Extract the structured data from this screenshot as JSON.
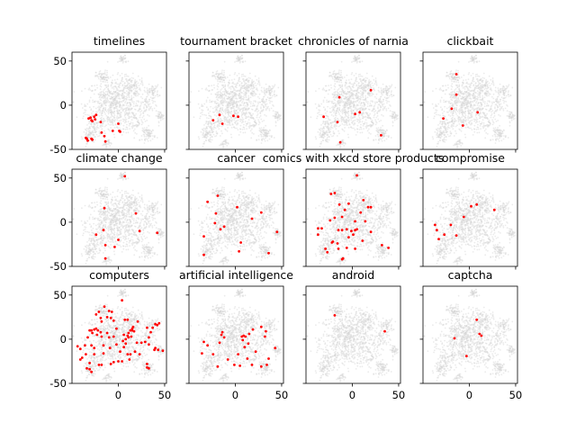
{
  "chart_data": {
    "type": "scatter",
    "layout": "3x4 grid of small multiples with shared axes",
    "xlim": [
      -50,
      52
    ],
    "ylim": [
      -50,
      60
    ],
    "xticks": [
      0,
      50
    ],
    "yticks": [
      -50,
      0,
      50
    ],
    "grid": false,
    "background_points_color": "#d3d3d3",
    "highlight_color": "#ff0000",
    "panels": [
      {
        "title": "timelines",
        "points": [
          [
            -29,
            -17
          ],
          [
            -32,
            -15
          ],
          [
            -26,
            -13
          ],
          [
            -24,
            -11
          ],
          [
            -28,
            -18
          ],
          [
            -30,
            -14
          ],
          [
            -25,
            -16
          ],
          [
            -19,
            -19
          ],
          [
            0,
            -21
          ],
          [
            -18,
            -31
          ],
          [
            -15,
            -35
          ],
          [
            -6,
            -29
          ],
          [
            2,
            -30
          ],
          [
            1,
            -29
          ],
          [
            -34,
            -38
          ],
          [
            -33,
            -40
          ],
          [
            -28,
            -39
          ],
          [
            -35,
            -37
          ],
          [
            -14,
            -41
          ],
          [
            -29,
            -38
          ]
        ]
      },
      {
        "title": "tournament bracket",
        "points": [
          [
            -24,
            -17
          ],
          [
            -17,
            -11
          ],
          [
            -14,
            -21
          ],
          [
            -2,
            -12
          ],
          [
            3,
            -13
          ]
        ]
      },
      {
        "title": "chronicles of narnia",
        "points": [
          [
            -31,
            -13
          ],
          [
            -14,
            9
          ],
          [
            -16,
            -19
          ],
          [
            3,
            -10
          ],
          [
            8,
            -8
          ],
          [
            20,
            17
          ],
          [
            31,
            -34
          ],
          [
            -13,
            -42
          ]
        ]
      },
      {
        "title": "clickbait",
        "points": [
          [
            -14,
            35
          ],
          [
            -14,
            12
          ],
          [
            -19,
            -4
          ],
          [
            -28,
            -15
          ],
          [
            9,
            -8
          ],
          [
            -7,
            -23
          ]
        ]
      },
      {
        "title": "climate change",
        "points": [
          [
            7,
            52
          ],
          [
            -15,
            16
          ],
          [
            19,
            10
          ],
          [
            -16,
            -9
          ],
          [
            -24,
            -14
          ],
          [
            23,
            -10
          ],
          [
            42,
            -12
          ],
          [
            0,
            -20
          ],
          [
            -14,
            -26
          ],
          [
            -4,
            -28
          ],
          [
            -14,
            -41
          ]
        ]
      },
      {
        "title": "cancer",
        "points": [
          [
            -19,
            30
          ],
          [
            -30,
            23
          ],
          [
            2,
            17
          ],
          [
            -21,
            10
          ],
          [
            28,
            11
          ],
          [
            18,
            4
          ],
          [
            -22,
            -1
          ],
          [
            -12,
            -5
          ],
          [
            -16,
            -8
          ],
          [
            -34,
            -16
          ],
          [
            6,
            -23
          ],
          [
            4,
            -33
          ],
          [
            45,
            -11
          ],
          [
            36,
            -35
          ],
          [
            -34,
            -37
          ]
        ]
      },
      {
        "title": "comics with xkcd store products",
        "points": [
          [
            5,
            53
          ],
          [
            -23,
            32
          ],
          [
            -19,
            33
          ],
          [
            -4,
            21
          ],
          [
            -14,
            20
          ],
          [
            -8,
            14
          ],
          [
            12,
            25
          ],
          [
            17,
            17
          ],
          [
            20,
            17
          ],
          [
            9,
            11
          ],
          [
            -19,
            5
          ],
          [
            -11,
            6
          ],
          [
            -24,
            2
          ],
          [
            3,
            1
          ],
          [
            14,
            1
          ],
          [
            -37,
            -7
          ],
          [
            -33,
            -7
          ],
          [
            -37,
            -14
          ],
          [
            -15,
            -9
          ],
          [
            -11,
            -9
          ],
          [
            -6,
            -8
          ],
          [
            5,
            -8
          ],
          [
            3,
            -9
          ],
          [
            -1,
            -10
          ],
          [
            20,
            -11
          ],
          [
            -21,
            -22
          ],
          [
            -22,
            -23
          ],
          [
            -16,
            -24
          ],
          [
            -4,
            -17
          ],
          [
            1,
            -14
          ],
          [
            11,
            -21
          ],
          [
            -29,
            -30
          ],
          [
            -27,
            -34
          ],
          [
            -15,
            -30
          ],
          [
            -6,
            -29
          ],
          [
            3,
            -30
          ],
          [
            32,
            -26
          ],
          [
            39,
            -29
          ],
          [
            -11,
            -42
          ],
          [
            -10,
            -41
          ]
        ]
      },
      {
        "title": "compromise",
        "points": [
          [
            -37,
            -3
          ],
          [
            -35,
            -9
          ],
          [
            -33,
            -19
          ],
          [
            -27,
            -14
          ],
          [
            -20,
            -3
          ],
          [
            -14,
            -15
          ],
          [
            -6,
            6
          ],
          [
            2,
            18
          ],
          [
            8,
            20
          ],
          [
            27,
            14
          ]
        ]
      },
      {
        "title": "computers",
        "points": [
          [
            4,
            44
          ],
          [
            -15,
            37
          ],
          [
            -21,
            31
          ],
          [
            -10,
            32
          ],
          [
            -7,
            31
          ],
          [
            -12,
            25
          ],
          [
            -8,
            24
          ],
          [
            -5,
            21
          ],
          [
            7,
            22
          ],
          [
            10,
            22
          ],
          [
            -24,
            28
          ],
          [
            21,
            20
          ],
          [
            6,
            5
          ],
          [
            10,
            4
          ],
          [
            8,
            0
          ],
          [
            11,
            7
          ],
          [
            13,
            10
          ],
          [
            15,
            12
          ],
          [
            16,
            14
          ],
          [
            17,
            9
          ],
          [
            5,
            -2
          ],
          [
            8,
            -5
          ],
          [
            11,
            2
          ],
          [
            14,
            3
          ],
          [
            15,
            10
          ],
          [
            6,
            -9
          ],
          [
            -26,
            11
          ],
          [
            -24,
            12
          ],
          [
            -22,
            10
          ],
          [
            -19,
            8
          ],
          [
            -23,
            5
          ],
          [
            -18,
            3
          ],
          [
            -28,
            7
          ],
          [
            -31,
            10
          ],
          [
            -33,
            2
          ],
          [
            -29,
            -7
          ],
          [
            -36,
            -7
          ],
          [
            -44,
            -8
          ],
          [
            -41,
            -11
          ],
          [
            -39,
            -21
          ],
          [
            -41,
            -23
          ],
          [
            -35,
            -17
          ],
          [
            -26,
            -17
          ],
          [
            -31,
            -27
          ],
          [
            -34,
            -33
          ],
          [
            -29,
            -37
          ],
          [
            -31,
            -34
          ],
          [
            -21,
            -29
          ],
          [
            -18,
            -29
          ],
          [
            -26,
            -10
          ],
          [
            -16,
            -7
          ],
          [
            -12,
            7
          ],
          [
            -10,
            2
          ],
          [
            -5,
            3
          ],
          [
            -2,
            12
          ],
          [
            -9,
            -10
          ],
          [
            -16,
            -16
          ],
          [
            -8,
            -28
          ],
          [
            -5,
            -26
          ],
          [
            0,
            -25
          ],
          [
            4,
            -25
          ],
          [
            10,
            -17
          ],
          [
            13,
            -17
          ],
          [
            12,
            -23
          ],
          [
            2,
            -14
          ],
          [
            -2,
            -6
          ],
          [
            20,
            -4
          ],
          [
            25,
            -4
          ],
          [
            29,
            -3
          ],
          [
            33,
            2
          ],
          [
            35,
            8
          ],
          [
            31,
            13
          ],
          [
            37,
            13
          ],
          [
            42,
            16
          ],
          [
            44,
            18
          ],
          [
            40,
            17
          ],
          [
            33,
            -6
          ],
          [
            40,
            -10
          ],
          [
            43,
            -12
          ],
          [
            48,
            -13
          ],
          [
            39,
            -12
          ],
          [
            31,
            -28
          ],
          [
            33,
            -33
          ],
          [
            31,
            -32
          ],
          [
            23,
            -17
          ],
          [
            18,
            -14
          ],
          [
            -18,
            20
          ],
          [
            -19,
            24
          ],
          [
            -29,
            10
          ]
        ]
      },
      {
        "title": "artificial intelligence",
        "points": [
          [
            -14,
            8
          ],
          [
            -15,
            5
          ],
          [
            -12,
            2
          ],
          [
            -34,
            -3
          ],
          [
            -30,
            -7
          ],
          [
            -36,
            -16
          ],
          [
            -24,
            -17
          ],
          [
            -17,
            -4
          ],
          [
            -19,
            -31
          ],
          [
            -8,
            -23
          ],
          [
            -1,
            -29
          ],
          [
            3,
            -17
          ],
          [
            5,
            -30
          ],
          [
            7,
            3
          ],
          [
            9,
            4
          ],
          [
            11,
            3
          ],
          [
            8,
            -1
          ],
          [
            10,
            -9
          ],
          [
            13,
            -22
          ],
          [
            14,
            -5
          ],
          [
            15,
            6
          ],
          [
            19,
            11
          ],
          [
            28,
            14
          ],
          [
            33,
            9
          ],
          [
            32,
            3
          ],
          [
            43,
            -10
          ],
          [
            36,
            -22
          ],
          [
            34,
            -29
          ],
          [
            28,
            -31
          ],
          [
            18,
            -29
          ],
          [
            22,
            -14
          ]
        ]
      },
      {
        "title": "android",
        "points": [
          [
            -19,
            27
          ],
          [
            35,
            9
          ]
        ]
      },
      {
        "title": "captcha",
        "points": [
          [
            8,
            22
          ],
          [
            -16,
            1
          ],
          [
            11,
            6
          ],
          [
            13,
            4
          ],
          [
            -3,
            -19
          ]
        ]
      }
    ]
  }
}
